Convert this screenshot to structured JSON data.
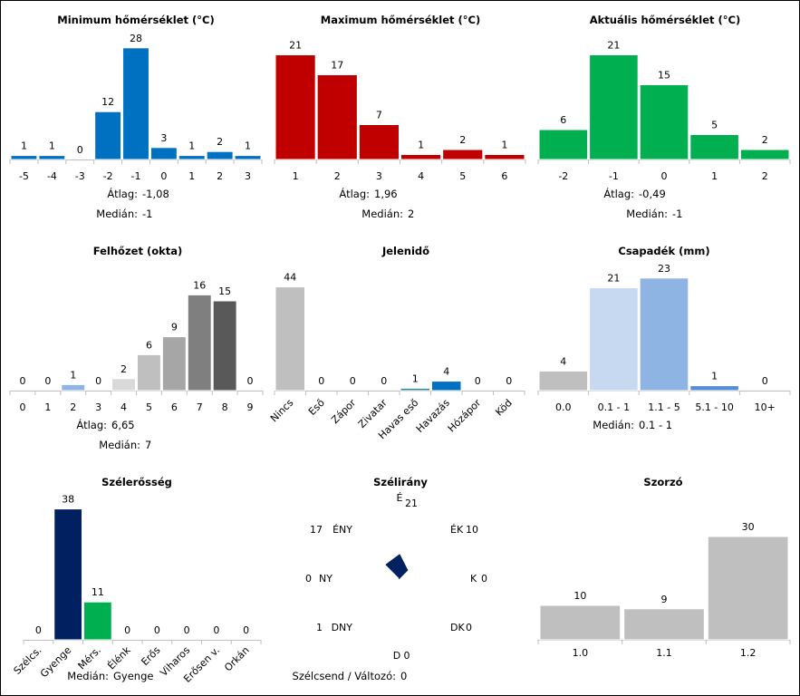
{
  "chart_data": [
    {
      "id": "min_temp",
      "type": "bar",
      "title": "Minimum hőmérséklet (°C)",
      "categories": [
        "-5",
        "-4",
        "-3",
        "-2",
        "-1",
        "0",
        "1",
        "2",
        "3"
      ],
      "values": [
        1,
        1,
        0,
        12,
        28,
        3,
        1,
        2,
        1
      ],
      "colors": [
        "#0070c0"
      ],
      "stats": [
        {
          "label": "Átlag:",
          "value": "-1,08"
        },
        {
          "label": "Medián:",
          "value": "-1"
        }
      ]
    },
    {
      "id": "max_temp",
      "type": "bar",
      "title": "Maximum hőmérséklet (°C)",
      "categories": [
        "1",
        "2",
        "3",
        "4",
        "5",
        "6"
      ],
      "values": [
        21,
        17,
        7,
        1,
        2,
        1
      ],
      "colors": [
        "#c00000"
      ],
      "stats": [
        {
          "label": "Átlag:",
          "value": "1,96"
        },
        {
          "label": "Medián:",
          "value": "2"
        }
      ]
    },
    {
      "id": "cur_temp",
      "type": "bar",
      "title": "Aktuális hőmérséklet (°C)",
      "categories": [
        "-2",
        "-1",
        "0",
        "1",
        "2"
      ],
      "values": [
        6,
        21,
        15,
        5,
        2
      ],
      "colors": [
        "#00b050"
      ],
      "stats": [
        {
          "label": "Átlag:",
          "value": "-0,49"
        },
        {
          "label": "Medián:",
          "value": "-1"
        }
      ]
    },
    {
      "id": "clouds",
      "type": "bar",
      "title": "Felhőzet (okta)",
      "categories": [
        "0",
        "1",
        "2",
        "3",
        "4",
        "5",
        "6",
        "7",
        "8",
        "9"
      ],
      "values": [
        0,
        0,
        1,
        0,
        2,
        6,
        9,
        16,
        15,
        0
      ],
      "colors": [
        "#ffffff",
        "#ffffff",
        "#8db4e2",
        "#ffffff",
        "#d9d9d9",
        "#bfbfbf",
        "#a6a6a6",
        "#7f7f7f",
        "#595959",
        "#ffffff"
      ],
      "stats": [
        {
          "label": "Átlag:",
          "value": "6,65"
        },
        {
          "label": "Medián:",
          "value": "7"
        }
      ]
    },
    {
      "id": "weather",
      "type": "bar",
      "title": "Jelenidő",
      "categories": [
        "Nincs",
        "Eső",
        "Zápor",
        "Zivatar",
        "Havas eső",
        "Havazás",
        "Hózápor",
        "Köd"
      ],
      "values": [
        44,
        0,
        0,
        0,
        1,
        4,
        0,
        0
      ],
      "colors": [
        "#bfbfbf",
        "#bfbfbf",
        "#bfbfbf",
        "#bfbfbf",
        "#31859c",
        "#0070c0",
        "#bfbfbf",
        "#bfbfbf"
      ],
      "rotated_labels": true,
      "stats": []
    },
    {
      "id": "precip",
      "type": "bar",
      "title": "Csapadék (mm)",
      "categories": [
        "0.0",
        "0.1 - 1",
        "1.1 - 5",
        "5.1 - 10",
        "10+"
      ],
      "values": [
        4,
        21,
        23,
        1,
        0
      ],
      "colors": [
        "#bfbfbf",
        "#c6d9f1",
        "#8db4e2",
        "#558ed5",
        "#1f497d"
      ],
      "stats": [
        {
          "label": "Medián:",
          "value": "0.1 - 1"
        }
      ]
    },
    {
      "id": "wind_strength",
      "type": "bar",
      "title": "Szélerősség",
      "categories": [
        "Szélcs.",
        "Gyenge",
        "Mérs.",
        "Élénk",
        "Erős",
        "Viharos",
        "Erősen v.",
        "Orkán"
      ],
      "values": [
        0,
        38,
        11,
        0,
        0,
        0,
        0,
        0
      ],
      "colors": [
        "#002060",
        "#002060",
        "#00b050",
        "#ffc000",
        "#ff0000",
        "#c00000",
        "#7030a0",
        "#000000"
      ],
      "rotated_labels": true,
      "stats": [
        {
          "label": "Medián:",
          "value": "Gyenge"
        }
      ]
    },
    {
      "id": "wind_dir",
      "type": "radar",
      "title": "Szélirány",
      "directions": [
        "É",
        "ÉK",
        "K",
        "DK",
        "D",
        "DNY",
        "NY",
        "ÉNY"
      ],
      "values": [
        21,
        10,
        0,
        0,
        0,
        1,
        0,
        17
      ],
      "color": "#002060",
      "footer": {
        "label": "Szélcsend / Változó:",
        "value": "0"
      }
    },
    {
      "id": "multiplier",
      "type": "bar",
      "title": "Szorzó",
      "categories": [
        "1.0",
        "1.1",
        "1.2"
      ],
      "values": [
        10,
        9,
        30
      ],
      "colors": [
        "#bfbfbf"
      ],
      "stats": []
    }
  ]
}
